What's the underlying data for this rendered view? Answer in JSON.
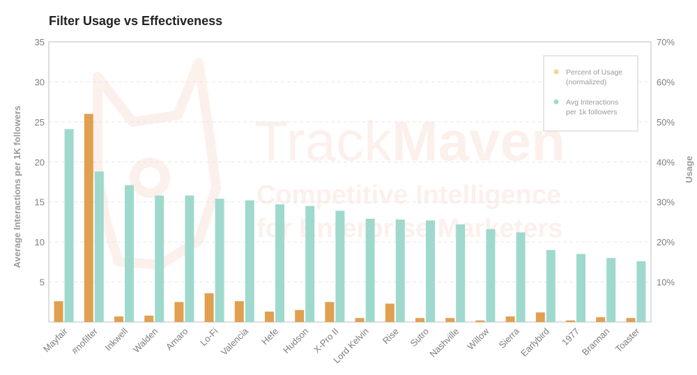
{
  "chart_data": {
    "type": "bar",
    "title": "Filter Usage vs Effectiveness",
    "ylabel": "Average Interactions per 1K followers",
    "y2label": "Usage",
    "ylim": [
      0,
      35
    ],
    "y2lim": [
      0,
      70
    ],
    "yticks": [
      5,
      10,
      15,
      20,
      25,
      30,
      35
    ],
    "y2ticks": [
      "10%",
      "20%",
      "30%",
      "40%",
      "50%",
      "60%",
      "70%"
    ],
    "grid": true,
    "legend_position": "top-right",
    "categories": [
      "Mayfair",
      "#nofilter",
      "Inkwell",
      "Walden",
      "Amaro",
      "Lo-Fi",
      "Valencia",
      "Hefe",
      "Hudson",
      "X-Pro II",
      "Lord Kelvin",
      "Rise",
      "Sutro",
      "Nashville",
      "Willow",
      "Sierra",
      "Earlybird",
      "1977",
      "Brannan",
      "Toaster"
    ],
    "series": [
      {
        "name": "Percent of Usage (normalized)",
        "color": "#e0a050",
        "axis": "left",
        "values": [
          2.6,
          26.0,
          0.7,
          0.8,
          2.5,
          3.6,
          2.6,
          1.3,
          1.5,
          2.5,
          0.5,
          2.3,
          0.5,
          0.5,
          0.2,
          0.7,
          1.2,
          0.2,
          0.6,
          0.5
        ]
      },
      {
        "name": "Avg Interactions per 1k followers",
        "color": "#9fd9cd",
        "axis": "left",
        "values": [
          24.1,
          18.8,
          17.1,
          15.8,
          15.8,
          15.4,
          15.2,
          14.7,
          14.5,
          13.9,
          12.9,
          12.8,
          12.7,
          12.2,
          11.6,
          11.2,
          9.0,
          8.5,
          8.0,
          7.6
        ]
      }
    ]
  },
  "legend": {
    "usage_line1": "Percent of Usage",
    "usage_line2": "(normalized)",
    "interactions_line1": "Avg Interactions",
    "interactions_line2": "per 1k followers"
  },
  "watermark": {
    "brand_light": "Track",
    "brand_bold": "Maven",
    "tagline_1": "Competitive Intelligence",
    "tagline_2": "for Enterprise Marketers"
  }
}
